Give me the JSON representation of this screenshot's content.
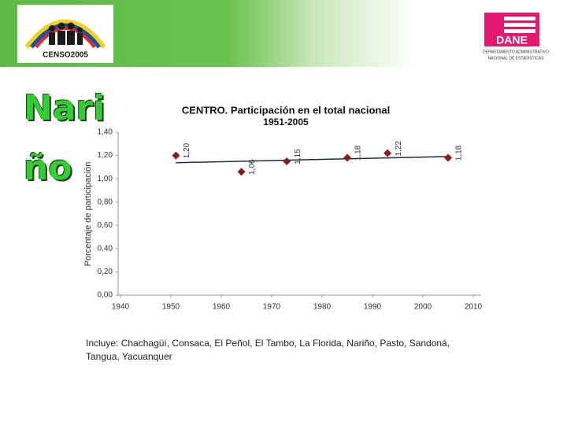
{
  "header": {
    "census_logo": "CENSO2005",
    "dane_logo": "DANE",
    "dane_caption_1": "DEPARTAMENTO ADMINISTRATIVO",
    "dane_caption_2": "NACIONAL DE ESTADISTICAS"
  },
  "title": "Nariño",
  "chart_data": {
    "type": "scatter",
    "title": "CENTRO. Participación en el total nacional",
    "subtitle": "1951-2005",
    "y_label": "Porcentaje de participación",
    "x": [
      1951,
      1964,
      1973,
      1985,
      1993,
      2005
    ],
    "values": [
      1.2,
      1.06,
      1.15,
      1.18,
      1.22,
      1.18
    ],
    "value_labels": [
      "1,20",
      "1,06",
      "1,15",
      "1,18",
      "1,22",
      "1,18"
    ],
    "color": "#8b1a1a",
    "trendline": true,
    "trend_color": "#1f2a44",
    "xlim": [
      1940,
      2010
    ],
    "xticks": [
      1940,
      1950,
      1960,
      1970,
      1980,
      1990,
      2000,
      2010
    ],
    "ylim": [
      0,
      1.4
    ],
    "yticks": [
      {
        "value": 0,
        "label": "0,00"
      },
      {
        "value": 0.2,
        "label": "0,20"
      },
      {
        "value": 0.4,
        "label": "0,40"
      },
      {
        "value": 0.6,
        "label": "0,60"
      },
      {
        "value": 0.8,
        "label": "0,80"
      },
      {
        "value": 1.0,
        "label": "1,00"
      },
      {
        "value": 1.2,
        "label": "1,20"
      },
      {
        "value": 1.4,
        "label": "1,40"
      }
    ]
  },
  "footnote": "Incluye: Chachagüí, Consaca, El Peñol, El Tambo, La Florida, Nariño, Pasto, Sandoná, Tangua, Yacuanquer"
}
